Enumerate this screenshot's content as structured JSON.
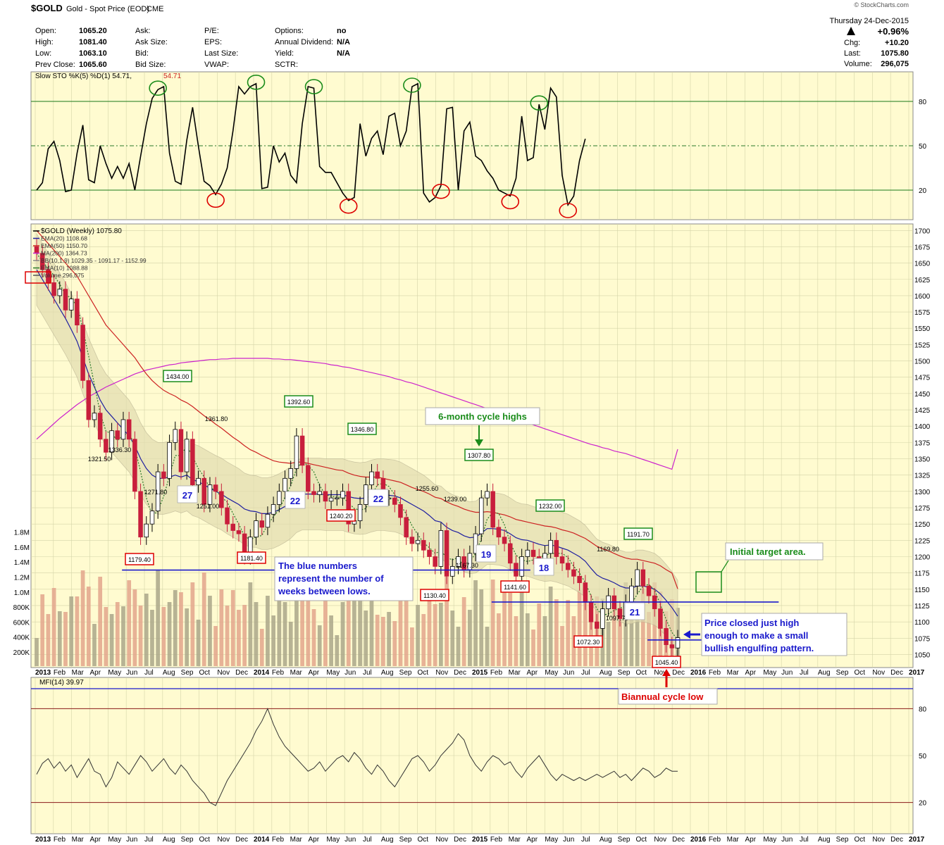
{
  "header": {
    "symbol": "$GOLD",
    "name": "Gold - Spot Price (EOD)",
    "exchange": "CME",
    "brand": "© StockCharts.com",
    "date": "Thursday   24-Dec-2015",
    "change_pct": "+0.96%",
    "fields": [
      {
        "label": "Open:",
        "value": "1065.20"
      },
      {
        "label": "High:",
        "value": "1081.40"
      },
      {
        "label": "Low:",
        "value": "1063.10"
      },
      {
        "label": "Prev Close:",
        "value": "1065.60"
      },
      {
        "label": "Ask:",
        "value": ""
      },
      {
        "label": "Ask Size:",
        "value": ""
      },
      {
        "label": "Bid:",
        "value": ""
      },
      {
        "label": "Bid Size:",
        "value": ""
      },
      {
        "label": "P/E:",
        "value": ""
      },
      {
        "label": "EPS:",
        "value": ""
      },
      {
        "label": "Last Size:",
        "value": ""
      },
      {
        "label": "VWAP:",
        "value": ""
      },
      {
        "label": "Options:",
        "value": "no"
      },
      {
        "label": "Annual Dividend:",
        "value": "N/A"
      },
      {
        "label": "Yield:",
        "value": "N/A"
      },
      {
        "label": "SCTR:",
        "value": ""
      }
    ],
    "right_fields": [
      {
        "label": "Chg:",
        "value": "+10.20"
      },
      {
        "label": "Last:",
        "value": "1075.80"
      },
      {
        "label": "Volume:",
        "value": "296,075"
      }
    ]
  },
  "chart_data": [
    {
      "type": "line",
      "title": "Slow STO %K(5) %D(1) 54.71, 54.71",
      "legend": "Slow STO %K(5) %D(1) 54.71,",
      "legend_value": "54.71",
      "ylim": [
        0,
        100
      ],
      "y_ticks": [
        20,
        50,
        80
      ],
      "values": [
        20,
        25,
        48,
        53,
        40,
        19,
        20,
        45,
        64,
        27,
        25,
        50,
        38,
        28,
        36,
        28,
        38,
        20,
        43,
        65,
        82,
        88,
        90,
        45,
        26,
        24,
        54,
        76,
        50,
        26,
        23,
        17,
        24,
        35,
        60,
        90,
        85,
        90,
        92,
        21,
        22,
        50,
        39,
        45,
        30,
        25,
        65,
        90,
        89,
        36,
        32,
        32,
        25,
        18,
        13,
        15,
        65,
        43,
        55,
        60,
        44,
        70,
        72,
        50,
        60,
        90,
        92,
        18,
        12,
        15,
        23,
        75,
        76,
        20,
        60,
        66,
        43,
        40,
        33,
        28,
        20,
        18,
        16,
        28,
        70,
        40,
        42,
        78,
        61,
        89,
        83,
        30,
        10,
        16,
        40,
        54.71
      ],
      "marked_highs": [
        21,
        38,
        48,
        65,
        87
      ],
      "marked_lows": [
        31,
        54,
        70,
        82,
        92
      ]
    },
    {
      "type": "candlestick",
      "title": "$GOLD (Weekly) 1075.80",
      "ylim": [
        1030,
        1710
      ],
      "y_ticks": [
        1050,
        1075,
        1100,
        1125,
        1150,
        1175,
        1200,
        1225,
        1250,
        1275,
        1300,
        1325,
        1350,
        1375,
        1400,
        1425,
        1450,
        1475,
        1500,
        1525,
        1550,
        1575,
        1600,
        1625,
        1650,
        1675,
        1700
      ],
      "volume_ticks": [
        "200K",
        "400K",
        "600K",
        "800K",
        "1.0M",
        "1.2M",
        "1.4M",
        "1.6M",
        "1.8M"
      ],
      "legend": [
        {
          "text": "$GOLD (Weekly) 1075.80",
          "color": "#000000"
        },
        {
          "text": "EMA(20) 1108.68",
          "color": "#1f1f9f"
        },
        {
          "text": "EMA(50) 1150.70",
          "color": "#cc2222"
        },
        {
          "text": "MA(200) 1364.73",
          "color": "#cc22cc"
        },
        {
          "text": "BB(10,1.9) 1029.35 - 1091.17 - 1152.99",
          "color": "#888888"
        },
        {
          "text": "EMA(10) 1088.88",
          "color": "#2a7a2a"
        },
        {
          "text": "Volume 296,075",
          "color": "#555555"
        }
      ],
      "closes": [
        1665,
        1640,
        1620,
        1600,
        1610,
        1578,
        1595,
        1555,
        1470,
        1410,
        1420,
        1380,
        1360,
        1393,
        1380,
        1410,
        1380,
        1300,
        1230,
        1250,
        1270,
        1330,
        1320,
        1375,
        1395,
        1330,
        1380,
        1310,
        1320,
        1280,
        1310,
        1300,
        1275,
        1250,
        1240,
        1235,
        1200,
        1230,
        1255,
        1245,
        1265,
        1280,
        1300,
        1320,
        1335,
        1385,
        1340,
        1300,
        1295,
        1300,
        1285,
        1290,
        1290,
        1300,
        1250,
        1255,
        1280,
        1310,
        1330,
        1320,
        1290,
        1290,
        1280,
        1260,
        1230,
        1220,
        1225,
        1210,
        1200,
        1185,
        1240,
        1170,
        1185,
        1200,
        1180,
        1205,
        1235,
        1290,
        1300,
        1245,
        1230,
        1220,
        1190,
        1170,
        1200,
        1210,
        1200,
        1190,
        1205,
        1225,
        1200,
        1190,
        1180,
        1170,
        1160,
        1130,
        1100,
        1090,
        1120,
        1140,
        1120,
        1105,
        1130,
        1155,
        1180,
        1155,
        1140,
        1120,
        1090,
        1065,
        1060,
        1075.8
      ],
      "ema20": [
        1640,
        1625,
        1610,
        1595,
        1580,
        1565,
        1548,
        1530,
        1505,
        1480,
        1460,
        1440,
        1425,
        1415,
        1405,
        1395,
        1385,
        1370,
        1350,
        1335,
        1325,
        1320,
        1320,
        1322,
        1325,
        1322,
        1325,
        1318,
        1315,
        1310,
        1305,
        1300,
        1296,
        1290,
        1285,
        1280,
        1273,
        1270,
        1269,
        1266,
        1266,
        1268,
        1272,
        1277,
        1283,
        1292,
        1296,
        1296,
        1296,
        1296,
        1295,
        1295,
        1295,
        1295,
        1292,
        1290,
        1289,
        1290,
        1293,
        1295,
        1295,
        1294,
        1293,
        1290,
        1285,
        1280,
        1275,
        1270,
        1263,
        1255,
        1253,
        1245,
        1240,
        1237,
        1232,
        1229,
        1230,
        1236,
        1243,
        1243,
        1242,
        1240,
        1235,
        1229,
        1226,
        1225,
        1222,
        1219,
        1217,
        1218,
        1216,
        1213,
        1210,
        1205,
        1200,
        1193,
        1182,
        1172,
        1167,
        1164,
        1160,
        1155,
        1152,
        1152,
        1155,
        1155,
        1153,
        1150,
        1143,
        1133,
        1122,
        1108.68
      ],
      "ema50": [
        1700,
        1690,
        1680,
        1670,
        1660,
        1650,
        1640,
        1630,
        1615,
        1600,
        1585,
        1570,
        1555,
        1545,
        1535,
        1525,
        1515,
        1505,
        1492,
        1480,
        1470,
        1462,
        1455,
        1450,
        1446,
        1440,
        1436,
        1430,
        1423,
        1416,
        1410,
        1403,
        1397,
        1390,
        1383,
        1377,
        1370,
        1364,
        1360,
        1355,
        1351,
        1347,
        1345,
        1344,
        1343,
        1345,
        1345,
        1343,
        1341,
        1339,
        1337,
        1335,
        1333,
        1332,
        1328,
        1325,
        1323,
        1322,
        1322,
        1322,
        1320,
        1318,
        1316,
        1314,
        1310,
        1306,
        1303,
        1300,
        1296,
        1291,
        1289,
        1284,
        1280,
        1277,
        1273,
        1270,
        1268,
        1268,
        1269,
        1268,
        1266,
        1264,
        1261,
        1257,
        1255,
        1253,
        1251,
        1249,
        1247,
        1246,
        1244,
        1241,
        1239,
        1236,
        1232,
        1228,
        1222,
        1216,
        1212,
        1209,
        1205,
        1201,
        1198,
        1196,
        1196,
        1194,
        1192,
        1190,
        1186,
        1180,
        1175,
        1150.7
      ],
      "ma200": [
        1380,
        1388,
        1396,
        1404,
        1412,
        1419,
        1426,
        1433,
        1439,
        1445,
        1450,
        1455,
        1460,
        1464,
        1468,
        1472,
        1476,
        1480,
        1483,
        1486,
        1488,
        1490,
        1492,
        1494,
        1495,
        1497,
        1498,
        1499,
        1500,
        1501,
        1502,
        1502,
        1503,
        1503,
        1504,
        1504,
        1504,
        1504,
        1504,
        1504,
        1504,
        1503,
        1503,
        1502,
        1502,
        1501,
        1500,
        1499,
        1498,
        1497,
        1496,
        1494,
        1493,
        1491,
        1490,
        1488,
        1486,
        1484,
        1482,
        1480,
        1478,
        1476,
        1473,
        1471,
        1468,
        1466,
        1463,
        1460,
        1457,
        1454,
        1451,
        1448,
        1445,
        1442,
        1439,
        1436,
        1433,
        1430,
        1427,
        1424,
        1421,
        1418,
        1414,
        1411,
        1408,
        1405,
        1402,
        1399,
        1396,
        1393,
        1390,
        1387,
        1384,
        1381,
        1378,
        1375,
        1372,
        1370,
        1367,
        1365,
        1362,
        1360,
        1358,
        1355,
        1352,
        1349,
        1346,
        1343,
        1340,
        1337,
        1334,
        1364.73
      ]
    },
    {
      "type": "line",
      "title": "MFI(14) 39.97",
      "ylim": [
        0,
        100
      ],
      "y_ticks": [
        20,
        50,
        80
      ],
      "values": [
        38,
        45,
        48,
        42,
        46,
        40,
        44,
        36,
        42,
        48,
        40,
        38,
        30,
        36,
        46,
        42,
        38,
        44,
        50,
        46,
        40,
        44,
        48,
        42,
        38,
        44,
        40,
        34,
        30,
        26,
        20,
        18,
        26,
        34,
        40,
        46,
        52,
        58,
        66,
        72,
        80,
        70,
        62,
        56,
        52,
        48,
        44,
        40,
        42,
        46,
        40,
        44,
        48,
        50,
        46,
        52,
        48,
        42,
        38,
        44,
        40,
        34,
        30,
        36,
        42,
        48,
        50,
        46,
        40,
        44,
        50,
        54,
        58,
        64,
        60,
        50,
        44,
        40,
        46,
        50,
        48,
        44,
        46,
        40,
        36,
        42,
        46,
        50,
        44,
        38,
        34,
        38,
        36,
        34,
        36,
        34,
        36,
        38,
        36,
        38,
        40,
        36,
        38,
        34,
        38,
        42,
        40,
        36,
        38,
        42,
        40,
        39.97
      ]
    }
  ],
  "x_axis": [
    "2013",
    "Feb",
    "Mar",
    "Apr",
    "May",
    "Jun",
    "Jul",
    "Aug",
    "Sep",
    "Oct",
    "Nov",
    "Dec",
    "2014",
    "Feb",
    "Mar",
    "Apr",
    "May",
    "Jun",
    "Jul",
    "Aug",
    "Sep",
    "Oct",
    "Nov",
    "Dec",
    "2015",
    "Feb",
    "Mar",
    "Apr",
    "May",
    "Jun",
    "Jul",
    "Aug",
    "Sep",
    "Oct",
    "Nov",
    "Dec",
    "2016",
    "Feb",
    "Mar",
    "Apr",
    "May",
    "Jun",
    "Jul",
    "Aug",
    "Sep",
    "Oct",
    "Nov",
    "Dec",
    "2017"
  ],
  "annotations": {
    "price_boxes": [
      {
        "text": "1434.00",
        "color": "#1a8c1a"
      },
      {
        "text": "1392.60",
        "color": "#1a8c1a"
      },
      {
        "text": "1346.80",
        "color": "#1a8c1a"
      },
      {
        "text": "1307.80",
        "color": "#1a8c1a"
      },
      {
        "text": "1232.00",
        "color": "#1a8c1a"
      },
      {
        "text": "1191.70",
        "color": "#1a8c1a"
      },
      {
        "text": "1179.40",
        "color": "#dd0000"
      },
      {
        "text": "1181.40",
        "color": "#dd0000"
      },
      {
        "text": "1240.20",
        "color": "#dd0000"
      },
      {
        "text": "1130.40",
        "color": "#dd0000"
      },
      {
        "text": "1141.60",
        "color": "#dd0000"
      },
      {
        "text": "1072.30",
        "color": "#dd0000"
      },
      {
        "text": "1045.40",
        "color": "#dd0000"
      }
    ],
    "price_labels": [
      "1321.50",
      "1336.30",
      "1271.80",
      "1251.00",
      "1361.80",
      "1255.60",
      "1239.00",
      "1167.30",
      "1169.80",
      "1097.70"
    ],
    "week_counts": [
      "27",
      "22",
      "22",
      "19",
      "18",
      "21"
    ],
    "notes": {
      "cycle_highs": "6-month cycle highs",
      "blue_numbers": [
        "The blue numbers",
        "represent the number of",
        "weeks between lows."
      ],
      "target": "Initial target area.",
      "engulfing": [
        "Price closed just high",
        "enough to make a small",
        "bullish engulfing pattern."
      ],
      "biannual": "Biannual cycle low"
    }
  },
  "colors": {
    "panel_bg": "#fffbd0",
    "grid": "#d4d4a8",
    "up_candle": "#ffffff",
    "down_candle": "#c81e3c",
    "bb_fill": "#e2dcb0",
    "green_note": "#1a8c1a",
    "red_note": "#dd0000",
    "blue_note": "#1a1acc"
  }
}
